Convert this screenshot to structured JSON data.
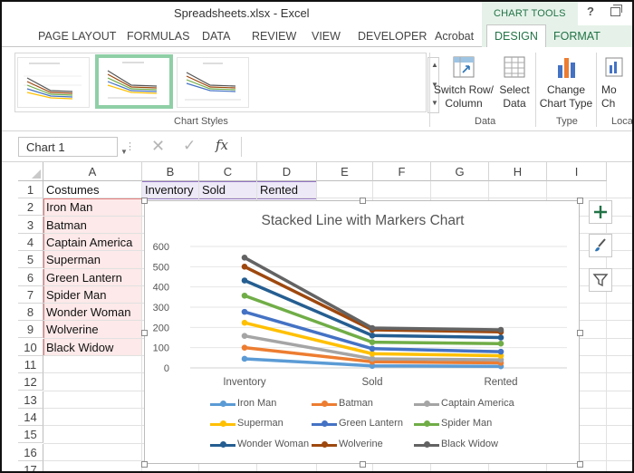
{
  "window": {
    "title": "Spreadsheets.xlsx - Excel",
    "tools_group": "CHART TOOLS",
    "help": "?"
  },
  "tabs": [
    "PAGE LAYOUT",
    "FORMULAS",
    "DATA",
    "REVIEW",
    "VIEW",
    "DEVELOPER",
    "Acrobat",
    "DESIGN",
    "FORMAT"
  ],
  "active_tab": "DESIGN",
  "ribbon": {
    "chart_styles_label": "Chart Styles",
    "switch_row_col": [
      "Switch Row/",
      "Column"
    ],
    "select_data": [
      "Select",
      "Data"
    ],
    "data_group_label": "Data",
    "change_chart_type": [
      "Change",
      "Chart Type"
    ],
    "type_group_label": "Type",
    "move_chart": [
      "Mo",
      "Ch"
    ],
    "location_group_label": "Loca"
  },
  "formula_bar": {
    "name_box": "Chart 1",
    "fx": "fx",
    "value": ""
  },
  "columns": [
    "A",
    "B",
    "C",
    "D",
    "E",
    "F",
    "G",
    "H",
    "I"
  ],
  "rows": [
    "1",
    "2",
    "3",
    "4",
    "5",
    "6",
    "7",
    "8",
    "9",
    "10",
    "11",
    "12",
    "13",
    "14",
    "15",
    "16",
    "17"
  ],
  "cells": {
    "A1": "Costumes",
    "B1": "Inventory",
    "C1": "Sold",
    "D1": "Rented",
    "A2": "Iron Man",
    "A3": "Batman",
    "A4": "Captain America",
    "A5": "Superman",
    "A6": "Green Lantern",
    "A7": "Spider Man",
    "A8": "Wonder Woman",
    "A9": "Wolverine",
    "A10": "Black Widow"
  },
  "chart_data": {
    "type": "line",
    "subtype": "stacked-line-with-markers",
    "title": "Stacked Line with Markers Chart",
    "categories": [
      "Inventory",
      "Sold",
      "Rented"
    ],
    "ylim": [
      0,
      600
    ],
    "yticks": [
      0,
      100,
      200,
      300,
      400,
      500,
      600
    ],
    "grid": true,
    "legend_position": "bottom",
    "series": [
      {
        "name": "Iron Man",
        "color": "#5b9bd5",
        "values": [
          45,
          10,
          8
        ]
      },
      {
        "name": "Batman",
        "color": "#ed7d31",
        "values": [
          100,
          30,
          25
        ]
      },
      {
        "name": "Captain America",
        "color": "#a5a5a5",
        "values": [
          158,
          45,
          40
        ]
      },
      {
        "name": "Superman",
        "color": "#ffc000",
        "values": [
          223,
          70,
          60
        ]
      },
      {
        "name": "Green Lantern",
        "color": "#4472c4",
        "values": [
          277,
          95,
          80
        ]
      },
      {
        "name": "Spider Man",
        "color": "#70ad47",
        "values": [
          357,
          127,
          120
        ]
      },
      {
        "name": "Wonder Woman",
        "color": "#255e91",
        "values": [
          432,
          160,
          150
        ]
      },
      {
        "name": "Wolverine",
        "color": "#9e480e",
        "values": [
          500,
          188,
          178
        ]
      },
      {
        "name": "Black Widow",
        "color": "#636363",
        "values": [
          545,
          197,
          188
        ]
      }
    ]
  }
}
